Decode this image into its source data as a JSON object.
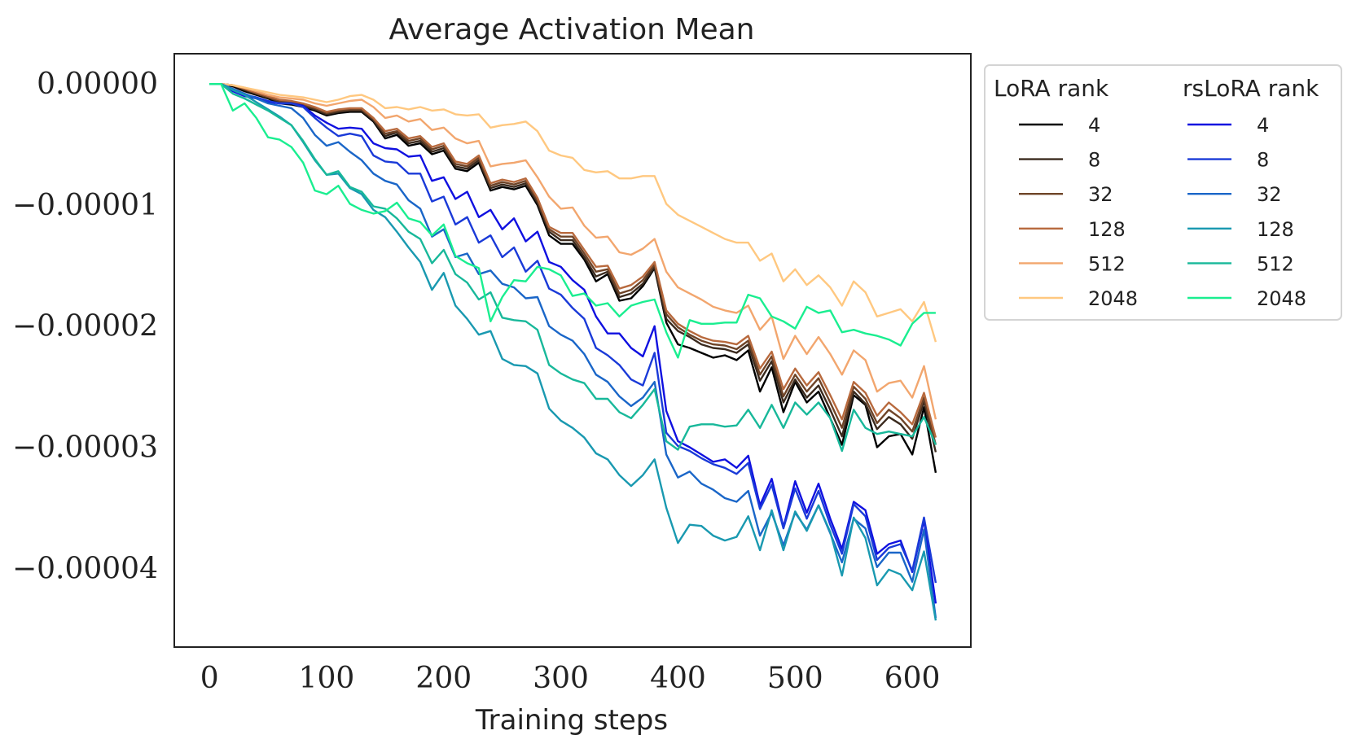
{
  "chart_data": {
    "type": "line",
    "title": "Average Activation Mean",
    "xlabel": "Training steps",
    "ylabel": "",
    "xlim": [
      -30,
      650
    ],
    "ylim": [
      -4.65e-05,
      2.5e-06
    ],
    "xticks": [
      0,
      100,
      200,
      300,
      400,
      500,
      600
    ],
    "xtick_labels": [
      "0",
      "100",
      "200",
      "300",
      "400",
      "500",
      "600"
    ],
    "yticks": [
      0,
      -1e-05,
      -2e-05,
      -3e-05,
      -4e-05
    ],
    "ytick_labels": [
      "0.00000",
      "−0.00001",
      "−0.00002",
      "−0.00003",
      "−0.00004"
    ],
    "grid": false,
    "legend": {
      "placement": "outside-right",
      "groups": [
        {
          "title": "LoRA rank",
          "entries": [
            "4",
            "8",
            "32",
            "128",
            "512",
            "2048"
          ]
        },
        {
          "title": "rsLoRA rank",
          "entries": [
            "4",
            "8",
            "32",
            "128",
            "512",
            "2048"
          ]
        }
      ]
    },
    "x": [
      0,
      10,
      20,
      30,
      40,
      50,
      60,
      70,
      80,
      90,
      100,
      110,
      120,
      130,
      140,
      150,
      160,
      170,
      180,
      190,
      200,
      210,
      220,
      230,
      240,
      250,
      260,
      270,
      280,
      290,
      300,
      310,
      320,
      330,
      340,
      350,
      360,
      370,
      380,
      390,
      400,
      410,
      420,
      430,
      440,
      450,
      460,
      470,
      480,
      490,
      500,
      510,
      520,
      530,
      540,
      550,
      560,
      570,
      580,
      590,
      600,
      610,
      620
    ],
    "series": [
      {
        "name": "4",
        "group": "LoRA rank",
        "color": "#000000",
        "values": [
          0,
          0,
          -0.2,
          -0.6,
          -0.9,
          -1.2,
          -1.6,
          -1.7,
          -1.9,
          -2.2,
          -2.6,
          -2.4,
          -2.3,
          -2.3,
          -3.1,
          -4.5,
          -4.2,
          -5.1,
          -4.9,
          -5.8,
          -5.5,
          -7.0,
          -7.2,
          -6.5,
          -8.8,
          -8.5,
          -8.7,
          -8.4,
          -10.0,
          -12.5,
          -13.2,
          -13.2,
          -14.5,
          -16.3,
          -15.7,
          -17.9,
          -17.7,
          -16.7,
          -15.2,
          -19.7,
          -21.5,
          -21.8,
          -22.2,
          -22.6,
          -22.4,
          -22.8,
          -22.0,
          -25.4,
          -23.4,
          -27.1,
          -24.6,
          -26.3,
          -25.4,
          -27.6,
          -29.8,
          -25.7,
          -26.5,
          -30.0,
          -29.1,
          -28.9,
          -30.6,
          -26.7,
          -32.1
        ]
      },
      {
        "name": "8",
        "group": "LoRA rank",
        "color": "#3a2a1e",
        "values": [
          0,
          0,
          -0.1,
          -0.5,
          -0.8,
          -1.1,
          -1.5,
          -1.6,
          -1.8,
          -2.1,
          -2.5,
          -2.3,
          -2.2,
          -2.2,
          -3.0,
          -4.3,
          -4.0,
          -4.9,
          -4.7,
          -5.6,
          -5.3,
          -6.8,
          -7.0,
          -6.3,
          -8.6,
          -8.3,
          -8.5,
          -8.2,
          -9.8,
          -12.2,
          -12.9,
          -12.9,
          -14.3,
          -15.9,
          -15.5,
          -17.6,
          -17.3,
          -16.5,
          -15.1,
          -19.4,
          -20.4,
          -20.9,
          -21.5,
          -21.8,
          -21.9,
          -22.2,
          -21.5,
          -24.5,
          -22.9,
          -26.3,
          -24.4,
          -25.9,
          -24.9,
          -26.9,
          -29.1,
          -25.4,
          -26.4,
          -28.5,
          -27.5,
          -28.1,
          -29.3,
          -26.2,
          -30.4
        ]
      },
      {
        "name": "32",
        "group": "LoRA rank",
        "color": "#6e4428",
        "values": [
          0,
          0,
          -0.1,
          -0.4,
          -0.8,
          -1.1,
          -1.4,
          -1.5,
          -1.7,
          -2.0,
          -2.4,
          -2.2,
          -2.1,
          -2.1,
          -2.9,
          -4.1,
          -3.9,
          -4.7,
          -4.5,
          -5.4,
          -5.1,
          -6.6,
          -6.8,
          -6.1,
          -8.4,
          -8.1,
          -8.3,
          -8.0,
          -9.6,
          -12.0,
          -12.6,
          -12.6,
          -14.0,
          -15.5,
          -15.3,
          -17.3,
          -17.0,
          -16.2,
          -14.9,
          -19.0,
          -20.1,
          -20.7,
          -21.2,
          -21.5,
          -21.6,
          -21.9,
          -21.2,
          -24.0,
          -22.5,
          -25.8,
          -24.0,
          -25.4,
          -24.3,
          -26.3,
          -28.4,
          -25.0,
          -26.0,
          -28.0,
          -26.9,
          -27.6,
          -28.7,
          -25.9,
          -29.8
        ]
      },
      {
        "name": "128",
        "group": "LoRA rank",
        "color": "#b86a3e",
        "values": [
          0,
          0,
          -0.1,
          -0.4,
          -0.7,
          -1.0,
          -1.3,
          -1.4,
          -1.6,
          -1.9,
          -2.3,
          -2.1,
          -2.0,
          -2.0,
          -2.8,
          -3.9,
          -3.7,
          -4.5,
          -4.3,
          -5.2,
          -4.9,
          -6.4,
          -6.6,
          -5.9,
          -8.2,
          -7.9,
          -8.1,
          -7.8,
          -9.4,
          -11.8,
          -12.3,
          -12.3,
          -13.7,
          -15.1,
          -15.0,
          -16.9,
          -16.6,
          -15.9,
          -14.7,
          -18.7,
          -19.8,
          -20.4,
          -20.9,
          -21.2,
          -21.3,
          -21.5,
          -20.8,
          -23.5,
          -22.1,
          -25.2,
          -23.5,
          -24.9,
          -23.8,
          -25.7,
          -27.7,
          -24.6,
          -25.5,
          -27.4,
          -26.3,
          -27.1,
          -28.1,
          -25.5,
          -29.2
        ]
      },
      {
        "name": "512",
        "group": "LoRA rank",
        "color": "#f2a66e",
        "values": [
          0,
          0,
          -0.1,
          -0.3,
          -0.6,
          -0.9,
          -1.1,
          -1.2,
          -1.3,
          -1.6,
          -1.8,
          -1.6,
          -1.4,
          -1.3,
          -1.9,
          -2.8,
          -2.6,
          -3.1,
          -2.9,
          -3.8,
          -3.6,
          -4.5,
          -4.9,
          -4.7,
          -6.8,
          -6.6,
          -6.5,
          -6.3,
          -7.7,
          -9.3,
          -10.3,
          -10.2,
          -11.7,
          -12.7,
          -12.6,
          -13.9,
          -14.1,
          -13.6,
          -12.8,
          -15.5,
          -16.8,
          -17.3,
          -17.8,
          -18.4,
          -18.7,
          -18.9,
          -18.3,
          -20.3,
          -19.2,
          -22.7,
          -20.8,
          -22.3,
          -20.9,
          -22.3,
          -24.0,
          -22.0,
          -22.8,
          -25.4,
          -24.7,
          -24.5,
          -25.9,
          -23.3,
          -27.7
        ]
      },
      {
        "name": "2048",
        "group": "LoRA rank",
        "color": "#ffc880",
        "values": [
          0,
          0,
          -0.1,
          -0.3,
          -0.5,
          -0.7,
          -0.9,
          -1.0,
          -1.1,
          -1.3,
          -1.5,
          -1.3,
          -1.0,
          -0.9,
          -1.3,
          -2.0,
          -1.9,
          -2.1,
          -1.9,
          -2.2,
          -2.1,
          -2.5,
          -2.6,
          -2.5,
          -3.6,
          -3.4,
          -3.3,
          -3.1,
          -3.9,
          -5.5,
          -5.9,
          -6.1,
          -7.1,
          -7.3,
          -7.2,
          -7.8,
          -7.8,
          -7.6,
          -7.6,
          -9.9,
          -10.8,
          -11.3,
          -11.8,
          -12.3,
          -12.8,
          -13.1,
          -13.1,
          -14.6,
          -14.0,
          -16.3,
          -15.3,
          -16.6,
          -15.8,
          -16.8,
          -18.3,
          -16.3,
          -17.2,
          -19.2,
          -18.9,
          -18.6,
          -19.6,
          -18.0,
          -21.3
        ]
      },
      {
        "name": "4",
        "group": "rsLoRA rank",
        "color": "#1010e0",
        "values": [
          0,
          0,
          -0.6,
          -1.0,
          -1.2,
          -1.5,
          -1.6,
          -1.6,
          -1.8,
          -2.6,
          -3.2,
          -3.7,
          -3.6,
          -3.7,
          -4.9,
          -5.3,
          -5.4,
          -6.0,
          -5.9,
          -8.0,
          -7.7,
          -9.5,
          -8.9,
          -11.0,
          -10.4,
          -12.0,
          -11.1,
          -13.0,
          -12.2,
          -14.7,
          -15.1,
          -16.2,
          -17.0,
          -19.2,
          -20.6,
          -20.6,
          -21.8,
          -22.5,
          -20.0,
          -27.0,
          -29.5,
          -30.0,
          -30.6,
          -31.2,
          -31.0,
          -31.7,
          -30.7,
          -34.8,
          -32.6,
          -36.6,
          -32.8,
          -35.4,
          -33.0,
          -35.9,
          -38.4,
          -34.5,
          -35.2,
          -38.8,
          -38.0,
          -37.7,
          -40.3,
          -36.0,
          -42.9
        ]
      },
      {
        "name": "8",
        "group": "rsLoRA rank",
        "color": "#1a3ad8",
        "values": [
          0,
          0,
          -0.5,
          -0.9,
          -1.1,
          -1.4,
          -1.6,
          -1.6,
          -1.9,
          -2.8,
          -3.6,
          -4.3,
          -4.1,
          -4.3,
          -5.9,
          -6.4,
          -6.5,
          -7.4,
          -7.4,
          -9.7,
          -9.3,
          -11.6,
          -11.0,
          -13.1,
          -12.5,
          -14.3,
          -13.5,
          -15.5,
          -14.6,
          -16.9,
          -17.4,
          -18.5,
          -19.4,
          -21.8,
          -22.4,
          -23.2,
          -24.4,
          -24.9,
          -22.2,
          -28.8,
          -29.9,
          -30.3,
          -30.9,
          -31.4,
          -31.7,
          -32.2,
          -31.3,
          -35.1,
          -33.1,
          -36.7,
          -33.4,
          -35.9,
          -33.6,
          -36.4,
          -38.8,
          -34.7,
          -35.7,
          -39.3,
          -38.3,
          -38.0,
          -40.2,
          -35.8,
          -41.2
        ]
      },
      {
        "name": "32",
        "group": "rsLoRA rank",
        "color": "#1a66c8",
        "values": [
          0,
          0,
          -0.4,
          -0.8,
          -1.2,
          -1.6,
          -1.8,
          -2.0,
          -2.8,
          -4.2,
          -5.1,
          -4.8,
          -5.6,
          -6.3,
          -7.4,
          -8.0,
          -8.3,
          -9.6,
          -10.3,
          -12.6,
          -12.0,
          -14.3,
          -14.0,
          -15.7,
          -15.4,
          -16.5,
          -16.8,
          -17.7,
          -17.6,
          -20.0,
          -20.7,
          -21.2,
          -22.3,
          -24.0,
          -24.6,
          -25.8,
          -26.6,
          -25.9,
          -24.6,
          -30.6,
          -32.5,
          -32.0,
          -33.0,
          -33.5,
          -34.2,
          -34.5,
          -33.6,
          -37.3,
          -35.4,
          -38.1,
          -35.4,
          -36.8,
          -34.8,
          -37.1,
          -39.5,
          -35.9,
          -36.7,
          -39.9,
          -38.7,
          -38.7,
          -41.1,
          -36.8,
          -44.1
        ]
      },
      {
        "name": "128",
        "group": "rsLoRA rank",
        "color": "#1999b0",
        "values": [
          0,
          0,
          -0.5,
          -0.9,
          -1.5,
          -2.1,
          -2.7,
          -3.4,
          -4.8,
          -6.3,
          -7.5,
          -7.4,
          -8.6,
          -9.1,
          -10.4,
          -11.0,
          -12.2,
          -13.5,
          -14.7,
          -17.0,
          -15.6,
          -18.3,
          -19.4,
          -20.7,
          -20.4,
          -22.7,
          -23.2,
          -23.3,
          -23.9,
          -26.8,
          -27.8,
          -28.4,
          -29.2,
          -30.5,
          -31.0,
          -32.3,
          -33.2,
          -32.3,
          -31.0,
          -35.0,
          -37.9,
          -36.4,
          -36.5,
          -37.3,
          -37.7,
          -37.4,
          -35.7,
          -38.5,
          -35.2,
          -38.5,
          -35.3,
          -36.9,
          -34.8,
          -37.0,
          -40.6,
          -35.8,
          -37.5,
          -41.4,
          -40.1,
          -40.5,
          -41.8,
          -38.6,
          -44.3
        ]
      },
      {
        "name": "512",
        "group": "rsLoRA rank",
        "color": "#18b89a",
        "values": [
          0,
          0,
          -0.8,
          -1.2,
          -1.7,
          -2.2,
          -2.8,
          -3.4,
          -4.7,
          -6.2,
          -7.5,
          -7.2,
          -8.5,
          -8.9,
          -10.1,
          -10.3,
          -11.1,
          -12.2,
          -12.8,
          -14.8,
          -13.7,
          -15.7,
          -16.4,
          -17.8,
          -17.2,
          -19.3,
          -19.5,
          -19.6,
          -20.3,
          -23.2,
          -23.9,
          -24.4,
          -24.7,
          -26.0,
          -26.0,
          -27.1,
          -27.6,
          -26.5,
          -25.2,
          -29.5,
          -30.2,
          -28.3,
          -28.1,
          -28.1,
          -28.3,
          -28.2,
          -26.9,
          -28.4,
          -26.5,
          -28.4,
          -26.3,
          -27.3,
          -26.3,
          -27.6,
          -30.3,
          -26.9,
          -28.4,
          -28.9,
          -28.7,
          -28.9,
          -29.1,
          -27.5,
          -29.8
        ]
      },
      {
        "name": "2048",
        "group": "rsLoRA rank",
        "color": "#1aee90",
        "values": [
          0,
          0,
          -2.2,
          -1.6,
          -2.8,
          -4.4,
          -4.6,
          -5.2,
          -6.5,
          -8.8,
          -9.1,
          -8.4,
          -9.9,
          -10.4,
          -10.7,
          -10.5,
          -9.8,
          -11.1,
          -11.4,
          -12.5,
          -11.6,
          -14.2,
          -14.8,
          -15.2,
          -19.6,
          -17.6,
          -16.2,
          -16.3,
          -15.1,
          -15.3,
          -15.8,
          -17.5,
          -17.3,
          -18.3,
          -18.1,
          -19.2,
          -18.3,
          -18.0,
          -17.8,
          -20.5,
          -22.6,
          -19.5,
          -19.8,
          -19.8,
          -19.7,
          -19.7,
          -17.4,
          -17.7,
          -19.2,
          -19.6,
          -20.2,
          -18.4,
          -18.9,
          -18.7,
          -20.5,
          -20.3,
          -20.6,
          -20.8,
          -21.1,
          -21.6,
          -19.8,
          -18.9,
          -18.9
        ]
      }
    ]
  }
}
